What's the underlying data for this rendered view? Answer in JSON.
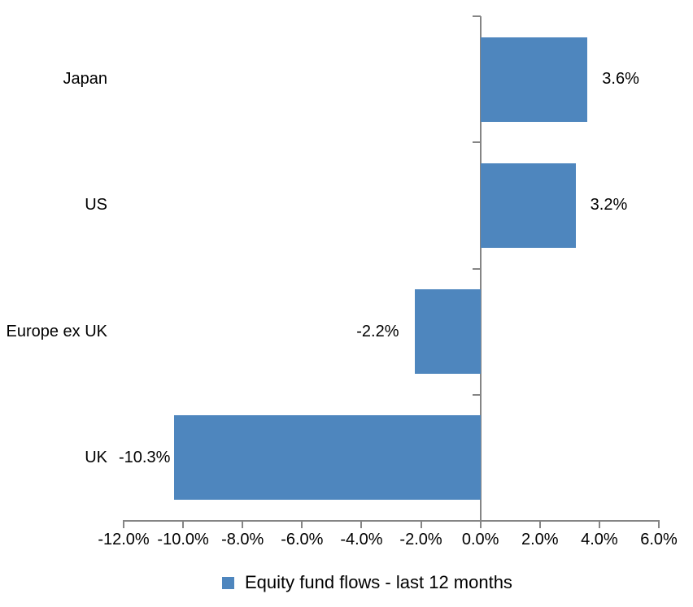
{
  "chart_data": {
    "type": "bar",
    "orientation": "horizontal",
    "title": "",
    "categories": [
      "Japan",
      "US",
      "Europe ex UK",
      "UK"
    ],
    "series": [
      {
        "name": "Equity fund flows - last 12 months",
        "values": [
          3.6,
          3.2,
          -2.2,
          -10.3
        ],
        "data_labels": [
          "3.6%",
          "3.2%",
          "-2.2%",
          "-10.3%"
        ],
        "color": "#4e86be"
      }
    ],
    "value_axis": {
      "min": -12,
      "max": 6,
      "tick_step": 2,
      "ticks": [
        -12,
        -10,
        -8,
        -6,
        -4,
        -2,
        0,
        2,
        4,
        6
      ],
      "tick_labels": [
        "-12.0%",
        "-10.0%",
        "-8.0%",
        "-6.0%",
        "-4.0%",
        "-2.0%",
        "0.0%",
        "2.0%",
        "4.0%",
        "6.0%"
      ]
    },
    "grid": false,
    "legend_position": "bottom",
    "axis_color": "#858585",
    "text_color": "#000000",
    "background_color": "#ffffff"
  },
  "legend": {
    "label": "Equity fund flows - last 12 months",
    "swatch_color": "#4e86be"
  }
}
